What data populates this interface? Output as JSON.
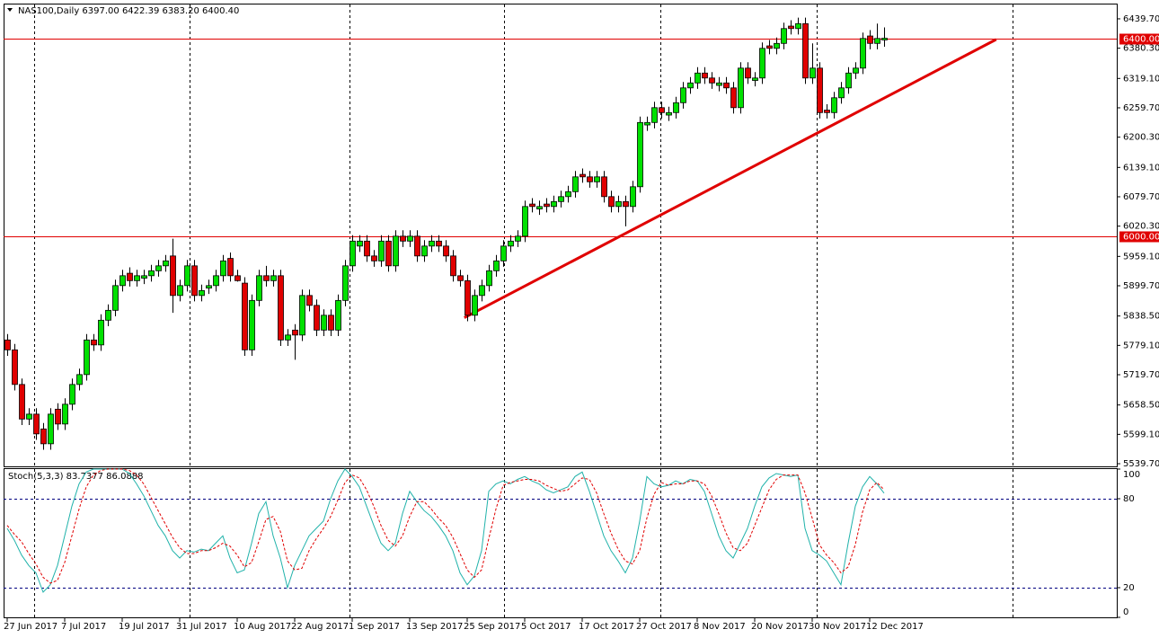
{
  "chart_data": [
    {
      "type": "candlestick",
      "title": "NAS100,Daily  6397.00 6422.39 6383.20 6400.40",
      "categories": [
        "27 Jun 2017",
        null,
        null,
        null,
        null,
        null,
        null,
        null,
        "7 Jul 2017",
        null,
        null,
        null,
        null,
        null,
        null,
        null,
        "19 Jul 2017",
        null,
        null,
        null,
        null,
        null,
        null,
        null,
        "31 Jul 2017",
        null,
        null,
        null,
        null,
        null,
        null,
        null,
        "10 Aug 2017",
        null,
        null,
        null,
        null,
        null,
        null,
        null,
        "22 Aug 2017",
        null,
        null,
        null,
        null,
        null,
        null,
        null,
        "1 Sep 2017",
        null,
        null,
        null,
        null,
        null,
        null,
        null,
        "13 Sep 2017",
        null,
        null,
        null,
        null,
        null,
        null,
        null,
        "25 Sep 2017",
        null,
        null,
        null,
        null,
        null,
        null,
        null,
        "5 Oct 2017",
        null,
        null,
        null,
        null,
        null,
        null,
        null,
        "17 Oct 2017",
        null,
        null,
        null,
        null,
        null,
        null,
        null,
        "27 Oct 2017",
        null,
        null,
        null,
        null,
        null,
        null,
        null,
        "8 Nov 2017",
        null,
        null,
        null,
        null,
        null,
        null,
        null,
        "20 Nov 2017",
        null,
        null,
        null,
        null,
        null,
        null,
        null,
        "30 Nov 2017",
        null,
        null,
        null,
        null,
        null,
        null,
        null,
        "12 Dec 2017",
        null,
        null
      ],
      "open": [
        5790,
        5770,
        5700,
        5630,
        5640,
        5610,
        5580,
        5650,
        5620,
        5660,
        5700,
        5720,
        5790,
        5780,
        5830,
        5850,
        5900,
        5925,
        5910,
        5915,
        5920,
        5930,
        5940,
        5960,
        5880,
        5900,
        5940,
        5880,
        5895,
        5900,
        5920,
        5955,
        5920,
        5905,
        5770,
        5870,
        5920,
        5910,
        5920,
        5790,
        5810,
        5800,
        5880,
        5860,
        5810,
        5840,
        5810,
        5870,
        5940,
        5980,
        5990,
        5960,
        5950,
        5990,
        5940,
        6000,
        5990,
        6000,
        5960,
        5980,
        5990,
        5980,
        5960,
        5920,
        5910,
        5840,
        5880,
        5900,
        5930,
        5950,
        5980,
        5990,
        6000,
        6065,
        6055,
        6065,
        6060,
        6070,
        6080,
        6090,
        6125,
        6120,
        6110,
        6120,
        6080,
        6060,
        6070,
        6060,
        6100,
        6225,
        6230,
        6260,
        6245,
        6250,
        6270,
        6300,
        6310,
        6330,
        6320,
        6305,
        6310,
        6300,
        6260,
        6340,
        6315,
        6320,
        6385,
        6380,
        6390,
        6425,
        6420,
        6430,
        6320,
        6340,
        6255,
        6250,
        6280,
        6300,
        6330,
        6340,
        6405,
        6390,
        6397
      ],
      "high": [
        5802,
        5782,
        5712,
        5652,
        5652,
        5622,
        5652,
        5662,
        5672,
        5712,
        5732,
        5802,
        5802,
        5842,
        5862,
        5912,
        5932,
        5937,
        5932,
        5932,
        5942,
        5952,
        5962,
        5995,
        5912,
        5952,
        5952,
        5902,
        5912,
        5932,
        5962,
        5967,
        5932,
        5917,
        5882,
        5932,
        5940,
        5932,
        5932,
        5812,
        5822,
        5892,
        5892,
        5872,
        5852,
        5852,
        5882,
        5952,
        6002,
        6002,
        6002,
        5972,
        6002,
        6002,
        6012,
        6012,
        6012,
        6012,
        5992,
        6002,
        6002,
        5992,
        5972,
        5932,
        5922,
        5892,
        5912,
        5942,
        5962,
        5992,
        6002,
        6012,
        6072,
        6077,
        6072,
        6077,
        6082,
        6092,
        6102,
        6132,
        6137,
        6132,
        6132,
        6132,
        6092,
        6082,
        6082,
        6112,
        6242,
        6242,
        6272,
        6272,
        6262,
        6282,
        6312,
        6322,
        6342,
        6342,
        6332,
        6322,
        6322,
        6312,
        6352,
        6352,
        6332,
        6392,
        6397,
        6402,
        6432,
        6437,
        6442,
        6442,
        6390,
        6352,
        6267,
        6292,
        6312,
        6342,
        6352,
        6412,
        6417,
        6430,
        6422.39
      ],
      "low": [
        5758,
        5688,
        5618,
        5618,
        5588,
        5568,
        5568,
        5608,
        5608,
        5648,
        5688,
        5708,
        5768,
        5768,
        5818,
        5838,
        5888,
        5898,
        5898,
        5903,
        5908,
        5918,
        5928,
        5845,
        5868,
        5888,
        5868,
        5868,
        5883,
        5888,
        5908,
        5908,
        5908,
        5758,
        5758,
        5858,
        5898,
        5898,
        5778,
        5778,
        5750,
        5788,
        5848,
        5798,
        5798,
        5798,
        5798,
        5858,
        5928,
        5968,
        5948,
        5938,
        5938,
        5928,
        5928,
        5978,
        5978,
        5948,
        5948,
        5968,
        5968,
        5948,
        5908,
        5898,
        5828,
        5828,
        5868,
        5888,
        5918,
        5938,
        5968,
        5978,
        5988,
        6048,
        6043,
        6048,
        6048,
        6058,
        6068,
        6078,
        6108,
        6098,
        6098,
        6068,
        6048,
        6048,
        6020,
        6048,
        6088,
        6213,
        6218,
        6238,
        6233,
        6238,
        6258,
        6288,
        6298,
        6308,
        6298,
        6293,
        6288,
        6248,
        6248,
        6308,
        6303,
        6308,
        6368,
        6368,
        6378,
        6408,
        6408,
        6308,
        6308,
        6238,
        6238,
        6238,
        6268,
        6288,
        6318,
        6328,
        6378,
        6378,
        6383.2
      ],
      "close": [
        5770,
        5700,
        5630,
        5640,
        5600,
        5580,
        5640,
        5620,
        5660,
        5700,
        5720,
        5790,
        5780,
        5830,
        5850,
        5900,
        5920,
        5910,
        5920,
        5920,
        5930,
        5940,
        5950,
        5880,
        5900,
        5940,
        5880,
        5890,
        5900,
        5920,
        5950,
        5920,
        5910,
        5770,
        5870,
        5920,
        5910,
        5920,
        5790,
        5800,
        5800,
        5880,
        5860,
        5810,
        5840,
        5810,
        5870,
        5940,
        5990,
        5990,
        5960,
        5950,
        5990,
        5940,
        6000,
        5990,
        6000,
        5960,
        5980,
        5990,
        5980,
        5960,
        5920,
        5910,
        5840,
        5880,
        5900,
        5930,
        5950,
        5980,
        5990,
        6000,
        6060,
        6060,
        6060,
        6060,
        6070,
        6080,
        6090,
        6120,
        6120,
        6110,
        6120,
        6080,
        6060,
        6070,
        6060,
        6100,
        6230,
        6230,
        6260,
        6250,
        6250,
        6270,
        6300,
        6310,
        6330,
        6320,
        6310,
        6310,
        6300,
        6260,
        6340,
        6320,
        6320,
        6380,
        6380,
        6390,
        6420,
        6420,
        6430,
        6320,
        6340,
        6250,
        6250,
        6280,
        6300,
        6330,
        6340,
        6400,
        6390,
        6400,
        6400.4
      ],
      "up_color": "#00e000",
      "down_color": "#e00000",
      "ylim": [
        5534.3,
        6468.7
      ],
      "yticks": [
        {
          "value": 6439.7,
          "label": "6439.70"
        },
        {
          "value": 6380.3,
          "label": "6380.30"
        },
        {
          "value": 6319.1,
          "label": "6319.10"
        },
        {
          "value": 6259.7,
          "label": "6259.70"
        },
        {
          "value": 6200.3,
          "label": "6200.30"
        },
        {
          "value": 6139.1,
          "label": "6139.10"
        },
        {
          "value": 6079.7,
          "label": "6079.70"
        },
        {
          "value": 6020.3,
          "label": "6020.30"
        },
        {
          "value": 5959.1,
          "label": "5959.10"
        },
        {
          "value": 5899.7,
          "label": "5899.70"
        },
        {
          "value": 5838.5,
          "label": "5838.50"
        },
        {
          "value": 5779.1,
          "label": "5779.10"
        },
        {
          "value": 5719.7,
          "label": "5719.70"
        },
        {
          "value": 5658.5,
          "label": "5658.50"
        },
        {
          "value": 5599.1,
          "label": "5599.10"
        },
        {
          "value": 5539.7,
          "label": "5539.70"
        }
      ],
      "hlines": [
        {
          "value": 6400,
          "label": "6400.00"
        },
        {
          "value": 6000,
          "label": "6000.00"
        }
      ],
      "hline_color": "#e00000",
      "trendline": {
        "x": [
          63.6,
          137.6
        ],
        "y": [
          5835,
          6398
        ],
        "color": "#e00000"
      }
    },
    {
      "type": "line",
      "title": "Stoch(5,3,3) 83.7377 86.0888",
      "series": [
        {
          "color": "#20b2aa",
          "values": [
            60,
            52,
            42,
            35,
            30,
            17,
            22,
            35,
            55,
            75,
            90,
            98,
            100,
            100,
            100,
            100,
            100,
            97,
            90,
            82,
            72,
            62,
            55,
            45,
            40,
            45,
            44,
            46,
            45,
            50,
            55,
            40,
            30,
            32,
            50,
            70,
            78,
            55,
            40,
            20,
            35,
            45,
            55,
            60,
            65,
            80,
            92,
            100,
            95,
            88,
            75,
            62,
            50,
            45,
            50,
            70,
            85,
            78,
            72,
            68,
            62,
            55,
            45,
            30,
            22,
            28,
            45,
            85,
            90,
            92,
            90,
            93,
            95,
            92,
            90,
            86,
            84,
            86,
            88,
            95,
            98,
            85,
            70,
            55,
            45,
            38,
            30,
            40,
            65,
            95,
            90,
            88,
            89,
            92,
            90,
            93,
            92,
            85,
            70,
            55,
            45,
            40,
            50,
            60,
            75,
            88,
            94,
            97,
            96,
            95,
            96,
            60,
            45,
            42,
            38,
            30,
            22,
            50,
            75,
            88,
            95,
            90,
            83.7377
          ]
        },
        {
          "color": "#e00000",
          "dashed": true,
          "values": [
            62,
            56,
            51,
            43,
            36,
            27,
            23,
            25,
            37,
            55,
            73,
            88,
            96,
            99,
            100,
            100,
            100,
            99,
            96,
            90,
            81,
            72,
            63,
            54,
            47,
            43,
            43,
            45,
            45,
            47,
            50,
            48,
            42,
            34,
            37,
            51,
            66,
            68,
            58,
            38,
            32,
            33,
            45,
            53,
            60,
            68,
            79,
            91,
            96,
            94,
            86,
            75,
            62,
            52,
            48,
            55,
            68,
            78,
            78,
            73,
            67,
            62,
            54,
            43,
            32,
            27,
            32,
            53,
            73,
            89,
            91,
            92,
            93,
            93,
            92,
            89,
            87,
            85,
            86,
            90,
            94,
            93,
            84,
            70,
            57,
            46,
            38,
            36,
            45,
            67,
            83,
            91,
            89,
            90,
            90,
            92,
            92,
            90,
            82,
            70,
            57,
            47,
            45,
            50,
            62,
            74,
            86,
            93,
            96,
            96,
            96,
            84,
            67,
            49,
            42,
            37,
            30,
            34,
            49,
            71,
            86,
            91,
            86.0888
          ]
        }
      ],
      "ylim": [
        0,
        100
      ],
      "yticks": [
        0,
        20,
        80,
        100
      ],
      "levels": [
        20,
        80
      ],
      "level_color": "#000080"
    }
  ]
}
